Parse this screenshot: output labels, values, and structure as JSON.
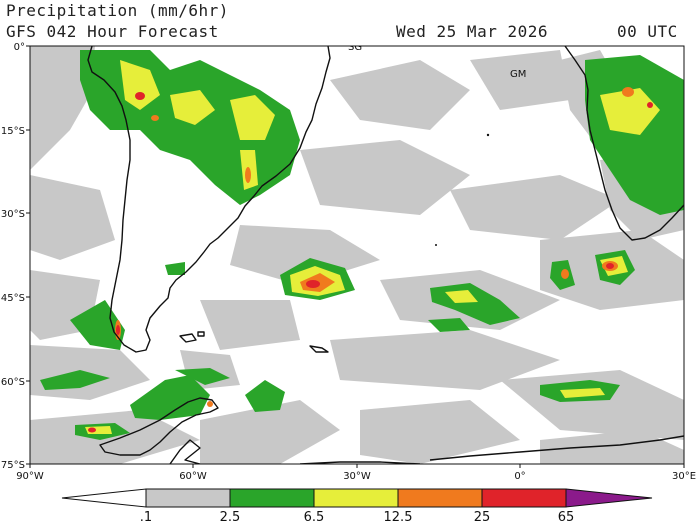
{
  "header": {
    "title": "Precipitation (mm/6hr)",
    "subtitle": "GFS 042 Hour Forecast",
    "date": "Wed 25 Mar 2026",
    "time": "00 UTC"
  },
  "map": {
    "lat_labels": [
      "0°",
      "15°S",
      "30°S",
      "45°S",
      "60°S",
      "75°S"
    ],
    "lon_labels": [
      "90°W",
      "60°W",
      "30°W",
      "0°",
      "30°E"
    ],
    "station_labels": [
      "SG",
      "GM"
    ]
  },
  "colorbar": {
    "labels": [
      ".1",
      "2.5",
      "6.5",
      "12.5",
      "25",
      "65"
    ],
    "colors": [
      "#ffffff",
      "#c8c8c8",
      "#2aa52a",
      "#e6ee3a",
      "#f07a1e",
      "#e0232a",
      "#8b1a8b"
    ]
  }
}
